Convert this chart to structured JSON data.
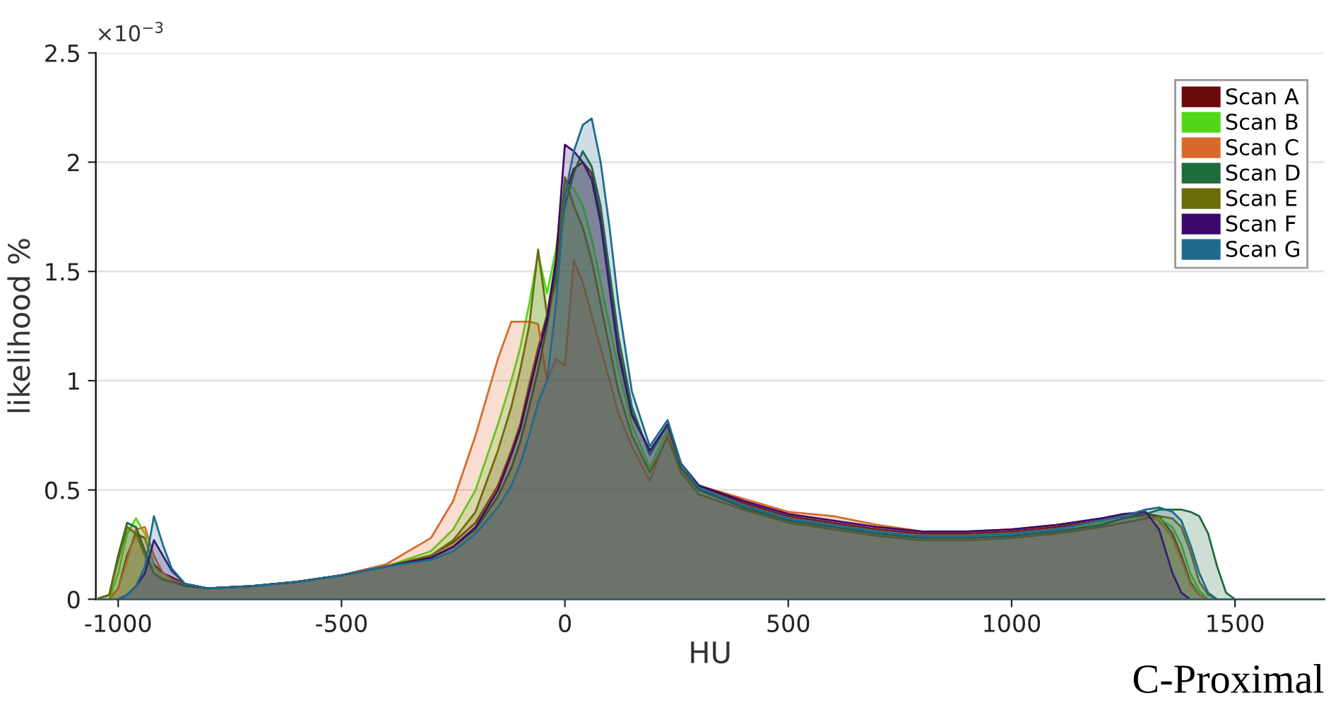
{
  "chart_data": {
    "type": "area",
    "xlabel": "HU",
    "ylabel": "likelihood %",
    "annotations": [
      "×10$^{−3}$",
      "C-Proximal"
    ],
    "x": [
      -1050,
      -1020,
      -1000,
      -980,
      -960,
      -940,
      -920,
      -900,
      -880,
      -850,
      -800,
      -700,
      -600,
      -500,
      -400,
      -300,
      -250,
      -200,
      -150,
      -120,
      -100,
      -80,
      -60,
      -40,
      -20,
      0,
      20,
      40,
      60,
      80,
      100,
      120,
      150,
      190,
      230,
      260,
      300,
      400,
      500,
      600,
      700,
      800,
      900,
      1000,
      1100,
      1200,
      1250,
      1300,
      1330,
      1360,
      1380,
      1400,
      1420,
      1440,
      1460,
      1480,
      1500,
      1550,
      1700
    ],
    "series": [
      {
        "name": "Scan A",
        "color": "#6b0a0a",
        "values": [
          0,
          0,
          0.05,
          0.2,
          0.3,
          0.28,
          0.16,
          0.12,
          0.1,
          0.07,
          0.05,
          0.06,
          0.08,
          0.11,
          0.15,
          0.2,
          0.26,
          0.35,
          0.52,
          0.68,
          0.8,
          0.98,
          1.15,
          1.3,
          1.55,
          1.85,
          1.97,
          2.0,
          1.95,
          1.75,
          1.45,
          1.15,
          0.85,
          0.68,
          0.8,
          0.62,
          0.52,
          0.44,
          0.38,
          0.35,
          0.32,
          0.3,
          0.3,
          0.31,
          0.33,
          0.36,
          0.38,
          0.39,
          0.38,
          0.3,
          0.2,
          0.08,
          0.02,
          0,
          0,
          0,
          0,
          0,
          0
        ]
      },
      {
        "name": "Scan B",
        "color": "#52d61a",
        "values": [
          0,
          0,
          0.12,
          0.3,
          0.37,
          0.3,
          0.15,
          0.1,
          0.08,
          0.07,
          0.05,
          0.06,
          0.08,
          0.11,
          0.15,
          0.22,
          0.32,
          0.5,
          0.8,
          1.0,
          1.15,
          1.35,
          1.58,
          1.4,
          1.6,
          1.9,
          1.88,
          1.8,
          1.65,
          1.45,
          1.25,
          1.05,
          0.8,
          0.6,
          0.78,
          0.6,
          0.5,
          0.43,
          0.37,
          0.34,
          0.31,
          0.29,
          0.29,
          0.3,
          0.32,
          0.35,
          0.37,
          0.38,
          0.37,
          0.33,
          0.25,
          0.12,
          0.04,
          0,
          0,
          0,
          0,
          0,
          0
        ]
      },
      {
        "name": "Scan C",
        "color": "#d9692a",
        "values": [
          0,
          0,
          0.05,
          0.18,
          0.32,
          0.33,
          0.2,
          0.12,
          0.09,
          0.07,
          0.05,
          0.06,
          0.08,
          0.11,
          0.16,
          0.28,
          0.45,
          0.75,
          1.1,
          1.27,
          1.27,
          1.27,
          1.26,
          1.0,
          1.1,
          1.07,
          1.55,
          1.45,
          1.3,
          1.15,
          1.0,
          0.85,
          0.7,
          0.54,
          0.76,
          0.6,
          0.52,
          0.46,
          0.4,
          0.38,
          0.34,
          0.31,
          0.31,
          0.32,
          0.34,
          0.37,
          0.38,
          0.38,
          0.36,
          0.28,
          0.18,
          0.07,
          0.02,
          0,
          0,
          0,
          0,
          0,
          0
        ]
      },
      {
        "name": "Scan D",
        "color": "#1e6b3c",
        "values": [
          0,
          0.02,
          0.2,
          0.35,
          0.33,
          0.22,
          0.12,
          0.09,
          0.08,
          0.06,
          0.05,
          0.06,
          0.08,
          0.11,
          0.15,
          0.19,
          0.24,
          0.32,
          0.47,
          0.6,
          0.72,
          0.88,
          1.05,
          1.25,
          1.5,
          1.8,
          1.95,
          2.05,
          1.98,
          1.8,
          1.5,
          1.2,
          0.88,
          0.66,
          0.8,
          0.6,
          0.5,
          0.42,
          0.36,
          0.33,
          0.3,
          0.28,
          0.28,
          0.29,
          0.31,
          0.34,
          0.37,
          0.39,
          0.41,
          0.41,
          0.41,
          0.4,
          0.38,
          0.3,
          0.15,
          0.03,
          0,
          0,
          0
        ]
      },
      {
        "name": "Scan E",
        "color": "#6b6b0a",
        "values": [
          0,
          0.02,
          0.18,
          0.33,
          0.3,
          0.2,
          0.12,
          0.09,
          0.08,
          0.07,
          0.05,
          0.06,
          0.08,
          0.11,
          0.15,
          0.2,
          0.27,
          0.4,
          0.68,
          0.88,
          1.05,
          1.25,
          1.6,
          1.3,
          1.45,
          1.93,
          1.8,
          1.7,
          1.55,
          1.35,
          1.15,
          0.95,
          0.75,
          0.58,
          0.74,
          0.58,
          0.48,
          0.41,
          0.35,
          0.32,
          0.29,
          0.27,
          0.27,
          0.28,
          0.3,
          0.33,
          0.35,
          0.37,
          0.38,
          0.37,
          0.33,
          0.22,
          0.08,
          0.02,
          0,
          0,
          0,
          0,
          0
        ]
      },
      {
        "name": "Scan F",
        "color": "#3a0a6b",
        "values": [
          0,
          0,
          0,
          0.02,
          0.06,
          0.12,
          0.27,
          0.2,
          0.13,
          0.07,
          0.05,
          0.06,
          0.08,
          0.11,
          0.15,
          0.19,
          0.24,
          0.33,
          0.5,
          0.66,
          0.78,
          0.95,
          1.12,
          1.28,
          1.55,
          2.08,
          2.05,
          2.0,
          1.92,
          1.72,
          1.42,
          1.12,
          0.84,
          0.68,
          0.8,
          0.62,
          0.52,
          0.45,
          0.39,
          0.36,
          0.33,
          0.31,
          0.31,
          0.32,
          0.34,
          0.37,
          0.39,
          0.4,
          0.32,
          0.12,
          0.03,
          0,
          0,
          0,
          0,
          0,
          0,
          0,
          0
        ]
      },
      {
        "name": "Scan G",
        "color": "#1e6b8c",
        "values": [
          0,
          0,
          0,
          0.02,
          0.06,
          0.15,
          0.38,
          0.25,
          0.14,
          0.07,
          0.05,
          0.06,
          0.08,
          0.11,
          0.15,
          0.18,
          0.22,
          0.3,
          0.42,
          0.52,
          0.62,
          0.75,
          0.9,
          1.0,
          1.35,
          1.85,
          2.05,
          2.17,
          2.2,
          2.0,
          1.7,
          1.35,
          0.95,
          0.7,
          0.82,
          0.62,
          0.51,
          0.43,
          0.37,
          0.34,
          0.31,
          0.29,
          0.29,
          0.3,
          0.32,
          0.36,
          0.38,
          0.41,
          0.42,
          0.4,
          0.36,
          0.25,
          0.12,
          0.03,
          0,
          0,
          0,
          0,
          0
        ]
      }
    ],
    "xlim": [
      -1050,
      1700
    ],
    "ylim": [
      0,
      2.5
    ],
    "xticks": [
      -1000,
      -500,
      0,
      500,
      1000,
      1500
    ],
    "yticks": [
      0,
      0.5,
      1,
      1.5,
      2,
      2.5
    ],
    "grid": "y",
    "legend": "top right",
    "marker": "none",
    "line_style": "solid"
  }
}
